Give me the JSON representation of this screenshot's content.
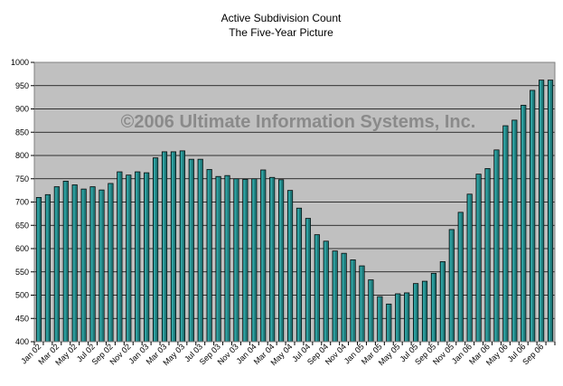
{
  "chart_data": {
    "type": "bar",
    "title": "Active Subdivision Count",
    "subtitle": "The Five-Year Picture",
    "watermark": "©2006 Ultimate Information Systems, Inc.",
    "xlabel": "",
    "ylabel": "",
    "ylim": [
      400,
      1000
    ],
    "y_ticks": [
      400,
      450,
      500,
      550,
      600,
      650,
      700,
      750,
      800,
      850,
      900,
      950,
      1000
    ],
    "grid": true,
    "colors": {
      "bar": "#1f7a7a",
      "plot_bg": "#c0c0c0",
      "grid": "#000000"
    },
    "categories": [
      "Jan 02",
      "Feb 02",
      "Mar 02",
      "Apr 02",
      "May 02",
      "Jun 02",
      "Jul 02",
      "Aug 02",
      "Sep 02",
      "Oct 02",
      "Nov 02",
      "Dec 02",
      "Jan 03",
      "Feb 03",
      "Mar 03",
      "Apr 03",
      "May 03",
      "Jun 03",
      "Jul 03",
      "Aug 03",
      "Sep 03",
      "Oct 03",
      "Nov 03",
      "Dec 03",
      "Jan 04",
      "Feb 04",
      "Mar 04",
      "Apr 04",
      "May 04",
      "Jun 04",
      "Jul 04",
      "Aug 04",
      "Sep 04",
      "Oct 04",
      "Nov 04",
      "Dec 04",
      "Jan 05",
      "Feb 05",
      "Mar 05",
      "Apr 05",
      "May 05",
      "Jun 05",
      "Jul 05",
      "Aug 05",
      "Sep 05",
      "Oct 05",
      "Nov 05",
      "Dec 05",
      "Jan 06",
      "Feb 06",
      "Mar 06",
      "Apr 06",
      "May 06",
      "Jun 06",
      "Jul 06",
      "Aug 06",
      "Sep 06",
      "Oct 06"
    ],
    "tick_labels": [
      "Jan 02",
      "Mar 02",
      "May 02",
      "Jul 02",
      "Sep 02",
      "Nov 02",
      "Jan 03",
      "Mar 03",
      "May 03",
      "Jul 03",
      "Sep 03",
      "Nov 03",
      "Jan 04",
      "Mar 04",
      "May 04",
      "Jul 04",
      "Sep 04",
      "Nov 04",
      "Jan 05",
      "Mar 05",
      "May 05",
      "Jul 05",
      "Sep 05",
      "Nov 05",
      "Jan 06",
      "Mar 06",
      "May 06",
      "Jul 06",
      "Sep 06"
    ],
    "values": [
      710,
      716,
      733,
      745,
      737,
      728,
      733,
      726,
      740,
      765,
      758,
      765,
      763,
      795,
      808,
      808,
      810,
      792,
      792,
      770,
      755,
      757,
      750,
      749,
      750,
      769,
      753,
      748,
      725,
      687,
      665,
      630,
      616,
      595,
      590,
      576,
      563,
      533,
      497,
      481,
      503,
      505,
      525,
      530,
      547,
      572,
      641,
      678,
      717,
      760,
      772,
      812,
      864,
      876,
      908,
      940,
      962,
      962
    ]
  }
}
